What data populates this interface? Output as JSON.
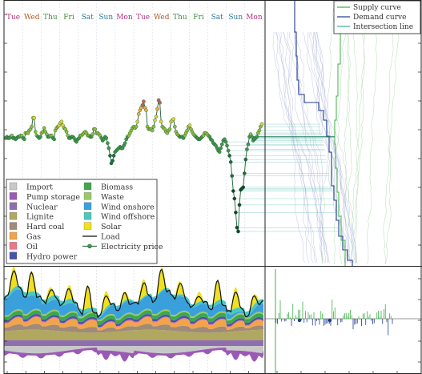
{
  "chart_data": [
    {
      "type": "line",
      "panel": "price-timeseries",
      "day_labels": [
        {
          "label": "Tue",
          "color": "#b0307a"
        },
        {
          "label": "Wed",
          "color": "#b05a1f"
        },
        {
          "label": "Thu",
          "color": "#3e8a3e"
        },
        {
          "label": "Fri",
          "color": "#3e8a3e"
        },
        {
          "label": "Sat",
          "color": "#2a7a9a"
        },
        {
          "label": "Sun",
          "color": "#2a7a9a"
        },
        {
          "label": "Mon",
          "color": "#b0307a"
        },
        {
          "label": "Tue",
          "color": "#b0307a"
        },
        {
          "label": "Wed",
          "color": "#b05a1f"
        },
        {
          "label": "Thu",
          "color": "#3e8a3e"
        },
        {
          "label": "Fri",
          "color": "#3e8a3e"
        },
        {
          "label": "Sat",
          "color": "#2a7a9a"
        },
        {
          "label": "Sun",
          "color": "#2a7a9a"
        },
        {
          "label": "Mon",
          "color": "#b0307a"
        }
      ],
      "series": [
        {
          "name": "Electricity price",
          "color": "#1e5c38",
          "values": [
            36,
            37,
            36,
            36,
            37,
            38,
            36,
            36,
            35,
            36,
            37,
            37,
            38,
            38,
            36,
            35,
            40,
            40,
            40,
            42,
            43,
            45,
            52,
            52,
            41,
            38,
            37,
            36,
            37,
            40,
            41,
            44,
            41,
            39,
            37,
            37,
            38,
            38,
            36,
            35,
            42,
            44,
            45,
            46,
            48,
            49,
            46,
            44,
            43,
            41,
            38,
            36,
            36,
            37,
            37,
            36,
            34,
            33,
            35,
            36,
            38,
            38,
            39,
            40,
            41,
            40,
            38,
            38,
            37,
            37,
            39,
            43,
            43,
            40,
            40,
            39,
            38,
            36,
            34,
            35,
            37,
            36,
            32,
            28,
            22,
            16,
            18,
            22,
            25,
            26,
            27,
            28,
            29,
            28,
            28,
            30,
            32,
            35,
            37,
            38,
            40,
            42,
            44,
            45,
            44,
            45,
            49,
            55,
            58,
            60,
            62,
            65,
            60,
            58,
            45,
            43,
            43,
            43,
            42,
            45,
            50,
            53,
            59,
            66,
            64,
            49,
            45,
            44,
            43,
            41,
            40,
            42,
            43,
            49,
            50,
            51,
            45,
            41,
            39,
            38,
            37,
            37,
            37,
            36,
            38,
            40,
            42,
            45,
            46,
            43,
            41,
            39,
            38,
            37,
            36,
            35,
            35,
            36,
            37,
            38,
            40,
            40,
            39,
            38,
            37,
            35,
            34,
            32,
            31,
            30,
            28,
            26,
            25,
            28,
            31,
            34,
            35,
            33,
            30,
            26,
            22,
            17,
            6,
            -6,
            -12,
            -23,
            -35,
            -38,
            -17,
            -5,
            -4,
            -3,
            8,
            19,
            27,
            31,
            37,
            39,
            37,
            34,
            35,
            36,
            37,
            40,
            42,
            45,
            47
          ]
        }
      ]
    },
    {
      "type": "line",
      "panel": "merit-order-curves",
      "legend": [
        "Supply curve",
        "Demand curve",
        "Intersection line"
      ],
      "colors": {
        "supply": "#3cb044",
        "demand": "#1f3a93",
        "intersection": "#3aaea0",
        "history": "#aab0d8"
      }
    },
    {
      "type": "area",
      "panel": "generation-mix",
      "legend": [
        {
          "label": "Import",
          "color": "#c8c8c8",
          "kind": "patch"
        },
        {
          "label": "Pump storage",
          "color": "#9b59b6",
          "kind": "patch"
        },
        {
          "label": "Nuclear",
          "color": "#8e6fae",
          "kind": "patch"
        },
        {
          "label": "Lignite",
          "color": "#b0a860",
          "kind": "patch"
        },
        {
          "label": "Hard coal",
          "color": "#a08a78",
          "kind": "patch"
        },
        {
          "label": "Gas",
          "color": "#f2a548",
          "kind": "patch"
        },
        {
          "label": "Oil",
          "color": "#e8788a",
          "kind": "patch"
        },
        {
          "label": "Hydro power",
          "color": "#4a52a8",
          "kind": "patch"
        },
        {
          "label": "Biomass",
          "color": "#3ca84a",
          "kind": "patch"
        },
        {
          "label": "Waste",
          "color": "#9bc86a",
          "kind": "patch"
        },
        {
          "label": "Wind onshore",
          "color": "#3aa0dc",
          "kind": "patch"
        },
        {
          "label": "Wind offshore",
          "color": "#4cc8c0",
          "kind": "patch"
        },
        {
          "label": "Solar",
          "color": "#f0e020",
          "kind": "patch"
        },
        {
          "label": "Load",
          "color": "#111111",
          "kind": "line"
        },
        {
          "label": "Electricity price",
          "color": "#1e5c38",
          "kind": "marker-line"
        }
      ]
    }
  ]
}
